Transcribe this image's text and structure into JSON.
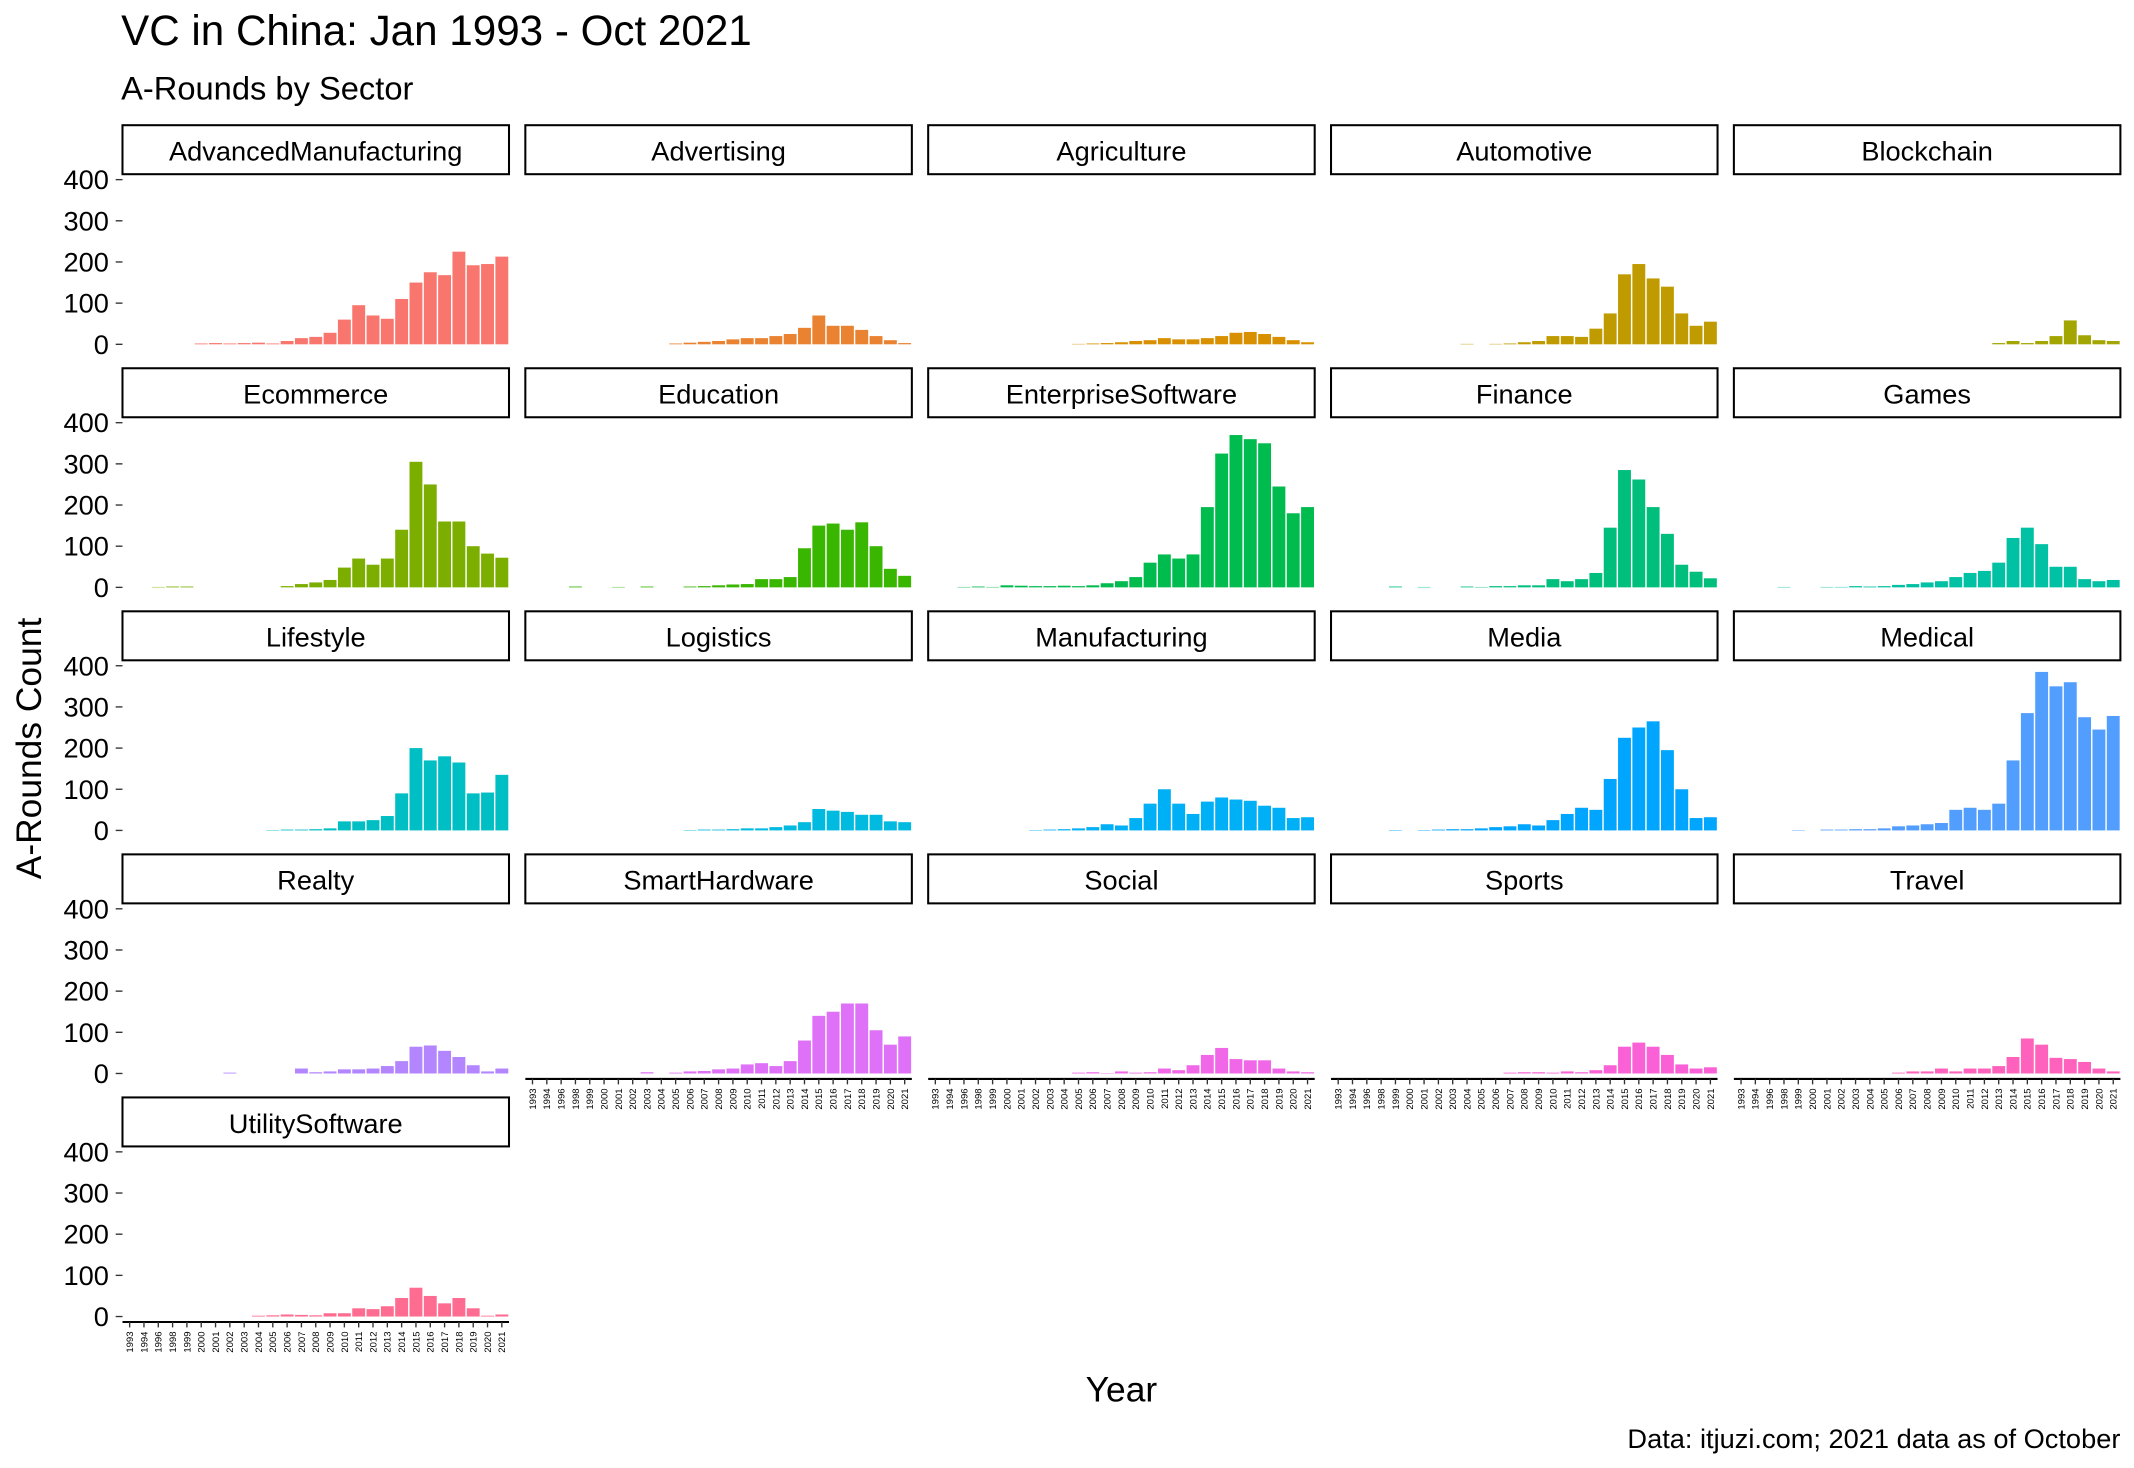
{
  "chart_data": {
    "type": "bar",
    "title": "VC in China: Jan 1993 - Oct 2021",
    "subtitle": "A-Rounds by Sector",
    "x_label": "Year",
    "y_label": "A-Rounds Count",
    "caption": "Data: itjuzi.com; 2021 data as of October",
    "categories": [
      "1993",
      "1994",
      "1996",
      "1998",
      "1999",
      "2000",
      "2001",
      "2002",
      "2003",
      "2004",
      "2005",
      "2006",
      "2007",
      "2008",
      "2009",
      "2010",
      "2011",
      "2012",
      "2013",
      "2014",
      "2015",
      "2016",
      "2017",
      "2018",
      "2019",
      "2020",
      "2021"
    ],
    "ylim": [
      0,
      400
    ],
    "yticks": [
      0,
      100,
      200,
      300,
      400
    ],
    "series": [
      {
        "name": "AdvancedManufacturing",
        "color": "#F8766D",
        "values": [
          0,
          0,
          0,
          0,
          0,
          2,
          3,
          2,
          3,
          4,
          2,
          8,
          15,
          18,
          28,
          60,
          95,
          70,
          62,
          110,
          150,
          175,
          168,
          225,
          192,
          195,
          213
        ]
      },
      {
        "name": "Advertising",
        "color": "#EA8331",
        "values": [
          0,
          0,
          0,
          0,
          0,
          0,
          0,
          0,
          0,
          0,
          2,
          4,
          6,
          8,
          12,
          15,
          15,
          20,
          25,
          40,
          70,
          45,
          45,
          35,
          20,
          10,
          3
        ]
      },
      {
        "name": "Agriculture",
        "color": "#D89000",
        "values": [
          0,
          0,
          0,
          0,
          0,
          0,
          0,
          0,
          0,
          0,
          1,
          2,
          3,
          5,
          8,
          10,
          15,
          12,
          12,
          15,
          20,
          28,
          30,
          25,
          18,
          10,
          5
        ]
      },
      {
        "name": "Automotive",
        "color": "#C09B00",
        "values": [
          0,
          0,
          0,
          0,
          0,
          0,
          0,
          0,
          0,
          1,
          0,
          1,
          2,
          5,
          8,
          20,
          20,
          18,
          38,
          75,
          170,
          195,
          160,
          140,
          75,
          45,
          55
        ]
      },
      {
        "name": "Blockchain",
        "color": "#A3A500",
        "values": [
          0,
          0,
          0,
          0,
          0,
          0,
          0,
          0,
          0,
          0,
          0,
          0,
          0,
          0,
          0,
          0,
          0,
          0,
          3,
          8,
          3,
          8,
          20,
          58,
          22,
          10,
          8
        ]
      },
      {
        "name": "Ecommerce",
        "color": "#7CAE00",
        "values": [
          0,
          0,
          1,
          2,
          2,
          0,
          0,
          0,
          0,
          0,
          0,
          3,
          8,
          12,
          18,
          48,
          70,
          55,
          70,
          140,
          305,
          250,
          160,
          160,
          100,
          82,
          72
        ]
      },
      {
        "name": "Education",
        "color": "#39B600",
        "values": [
          0,
          0,
          0,
          2,
          0,
          0,
          1,
          0,
          2,
          0,
          0,
          2,
          3,
          5,
          7,
          8,
          20,
          20,
          25,
          95,
          150,
          155,
          140,
          158,
          100,
          45,
          28
        ]
      },
      {
        "name": "EnterpriseSoftware",
        "color": "#00BB4E",
        "values": [
          0,
          0,
          1,
          2,
          1,
          5,
          4,
          3,
          3,
          4,
          3,
          5,
          10,
          15,
          25,
          60,
          80,
          70,
          80,
          195,
          325,
          370,
          360,
          350,
          245,
          180,
          195
        ]
      },
      {
        "name": "Finance",
        "color": "#00BF7D",
        "values": [
          0,
          0,
          0,
          0,
          2,
          0,
          1,
          0,
          0,
          2,
          1,
          3,
          3,
          5,
          5,
          20,
          15,
          20,
          35,
          145,
          285,
          262,
          195,
          130,
          55,
          38,
          22
        ]
      },
      {
        "name": "Games",
        "color": "#00C1A3",
        "values": [
          0,
          0,
          0,
          1,
          0,
          0,
          1,
          1,
          3,
          2,
          3,
          6,
          8,
          12,
          15,
          25,
          35,
          40,
          60,
          120,
          145,
          105,
          50,
          50,
          20,
          15,
          18
        ]
      },
      {
        "name": "Lifestyle",
        "color": "#00BFC4",
        "values": [
          0,
          0,
          0,
          0,
          0,
          0,
          0,
          0,
          0,
          0,
          1,
          2,
          2,
          3,
          5,
          22,
          22,
          25,
          35,
          90,
          200,
          170,
          180,
          165,
          90,
          92,
          135
        ]
      },
      {
        "name": "Logistics",
        "color": "#00BAE0",
        "values": [
          0,
          0,
          0,
          0,
          0,
          0,
          0,
          0,
          0,
          0,
          0,
          1,
          2,
          2,
          3,
          5,
          5,
          8,
          12,
          20,
          52,
          48,
          45,
          38,
          38,
          22,
          20
        ]
      },
      {
        "name": "Manufacturing",
        "color": "#00B0F6",
        "values": [
          0,
          0,
          0,
          0,
          0,
          0,
          0,
          1,
          2,
          3,
          5,
          8,
          15,
          12,
          30,
          65,
          100,
          65,
          40,
          70,
          80,
          75,
          72,
          60,
          55,
          30,
          32
        ]
      },
      {
        "name": "Media",
        "color": "#00A5FF",
        "values": [
          0,
          0,
          0,
          0,
          1,
          0,
          1,
          2,
          3,
          3,
          5,
          8,
          10,
          15,
          12,
          25,
          40,
          55,
          50,
          125,
          225,
          250,
          265,
          195,
          100,
          30,
          32
        ]
      },
      {
        "name": "Medical",
        "color": "#529EFF",
        "values": [
          0,
          0,
          0,
          0,
          1,
          0,
          2,
          2,
          3,
          3,
          5,
          10,
          12,
          15,
          18,
          50,
          55,
          50,
          65,
          170,
          285,
          385,
          350,
          360,
          275,
          245,
          278
        ]
      },
      {
        "name": "Realty",
        "color": "#B385FF",
        "values": [
          0,
          0,
          0,
          0,
          0,
          0,
          0,
          2,
          0,
          0,
          0,
          0,
          12,
          3,
          5,
          10,
          10,
          12,
          18,
          30,
          65,
          68,
          55,
          40,
          20,
          5,
          12
        ]
      },
      {
        "name": "SmartHardware",
        "color": "#DF70F8",
        "values": [
          0,
          0,
          0,
          0,
          0,
          0,
          0,
          0,
          3,
          0,
          2,
          5,
          6,
          10,
          12,
          22,
          25,
          18,
          30,
          80,
          140,
          150,
          170,
          170,
          105,
          70,
          90
        ]
      },
      {
        "name": "Social",
        "color": "#F067E8",
        "values": [
          0,
          0,
          0,
          0,
          0,
          0,
          0,
          0,
          0,
          0,
          2,
          3,
          1,
          5,
          2,
          3,
          12,
          8,
          20,
          45,
          62,
          35,
          32,
          32,
          12,
          5,
          3
        ]
      },
      {
        "name": "Sports",
        "color": "#FB61D7",
        "values": [
          0,
          0,
          0,
          0,
          0,
          0,
          0,
          0,
          0,
          0,
          0,
          0,
          2,
          3,
          3,
          2,
          5,
          3,
          8,
          20,
          65,
          75,
          65,
          45,
          22,
          12,
          15
        ]
      },
      {
        "name": "Travel",
        "color": "#FF62BC",
        "values": [
          0,
          0,
          0,
          0,
          0,
          0,
          0,
          0,
          0,
          0,
          0,
          2,
          5,
          5,
          12,
          5,
          12,
          12,
          18,
          40,
          85,
          70,
          38,
          35,
          28,
          12,
          5
        ]
      },
      {
        "name": "UtilitySoftware",
        "color": "#FF6C91",
        "values": [
          0,
          0,
          0,
          0,
          0,
          0,
          0,
          0,
          0,
          2,
          3,
          5,
          4,
          3,
          8,
          8,
          20,
          18,
          25,
          45,
          70,
          50,
          32,
          45,
          20,
          2,
          5
        ]
      }
    ]
  }
}
